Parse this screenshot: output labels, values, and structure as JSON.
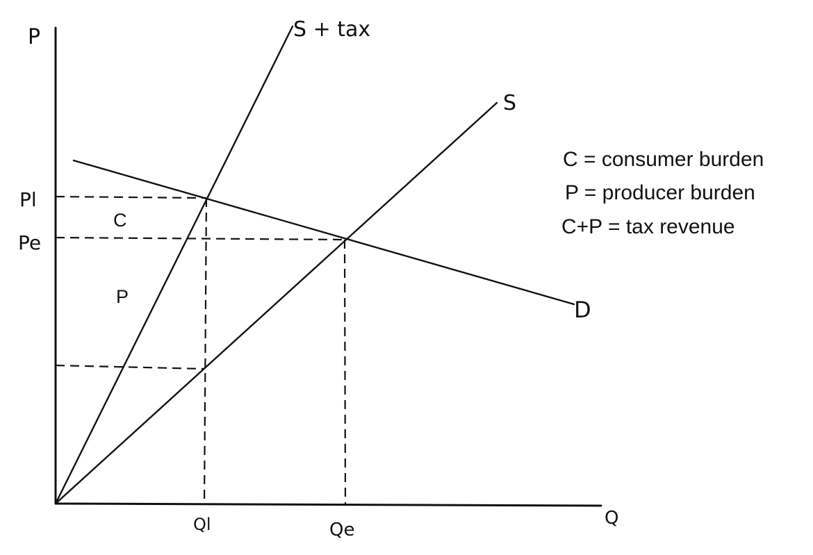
{
  "axes": {
    "y_label": "P",
    "x_label": "Q"
  },
  "curves": {
    "supply_tax_label": "S + tax",
    "supply_label": "S",
    "demand_label": "D"
  },
  "ticks": {
    "p1": "Pl",
    "pe": "Pe",
    "q1": "Ql",
    "qe": "Qe"
  },
  "regions": {
    "consumer": "C",
    "producer": "P"
  },
  "legend": {
    "line1": "C = consumer burden",
    "line2": "P = producer burden",
    "line3": "C+P = tax revenue"
  }
}
